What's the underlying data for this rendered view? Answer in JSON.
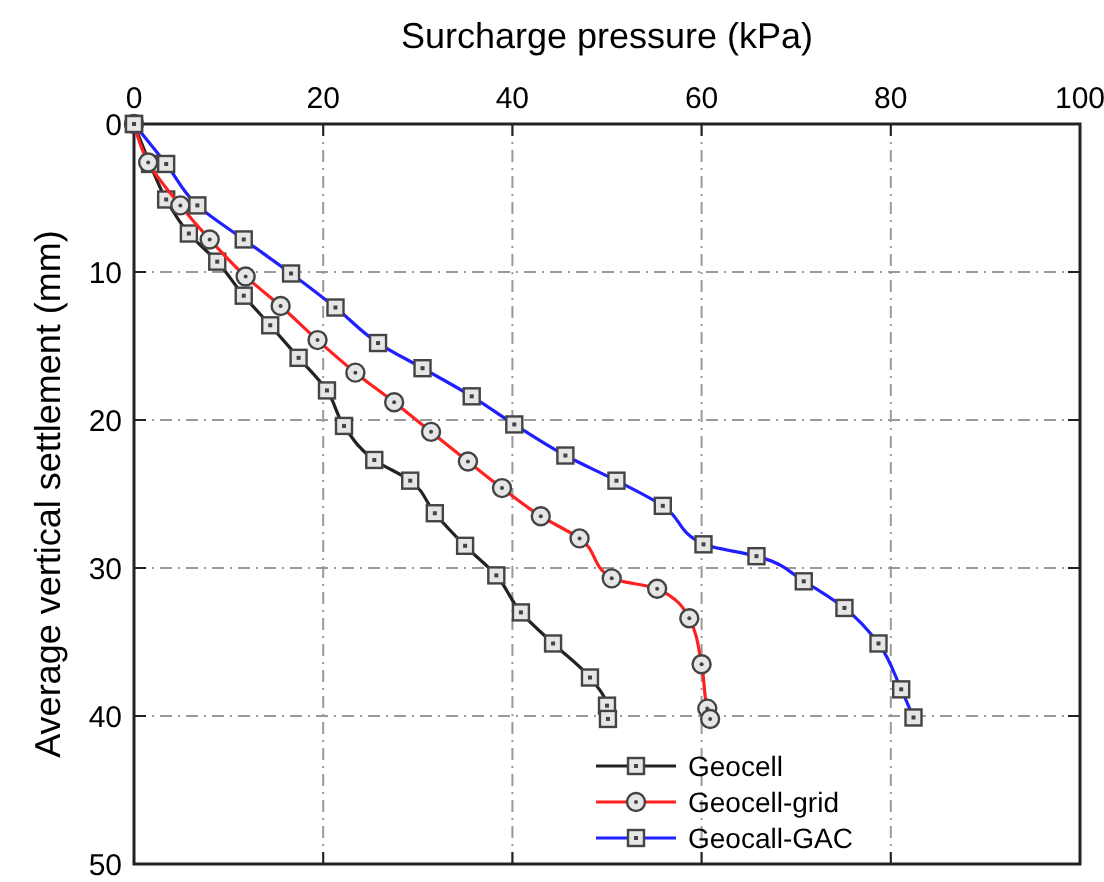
{
  "chart_data": {
    "type": "line",
    "xlabel": "Surcharge pressure (kPa)",
    "ylabel": "Average vertical settlement (mm)",
    "xlim": [
      0,
      100
    ],
    "xticks": [
      0,
      20,
      40,
      60,
      80,
      100
    ],
    "ylim": [
      50,
      0
    ],
    "yticks": [
      0,
      10,
      20,
      30,
      40,
      50
    ],
    "grid": true,
    "legend": "bottom right",
    "line_style": "solid",
    "series": [
      {
        "name": "Geocell",
        "color": "#222222",
        "marker": "square",
        "x": [
          0,
          1.7,
          3.4,
          5.8,
          8.8,
          11.6,
          14.4,
          17.4,
          20.4,
          22.2,
          25.4,
          29.2,
          31.8,
          35,
          38.3,
          40.9,
          44.3,
          48.2,
          50,
          50.1
        ],
        "values": [
          0,
          2.7,
          5.1,
          7.4,
          9.3,
          11.6,
          13.6,
          15.8,
          18,
          20.4,
          22.7,
          24.1,
          26.3,
          28.5,
          30.5,
          33,
          35.1,
          37.4,
          39.3,
          40.2
        ]
      },
      {
        "name": "Geocell-grid",
        "color": "#ff2020",
        "marker": "circle",
        "x": [
          0,
          1.5,
          4.9,
          8,
          11.8,
          15.5,
          19.4,
          23.4,
          27.5,
          31.4,
          35.3,
          38.9,
          43,
          47.1,
          50.5,
          55.3,
          58.7,
          60,
          60.6,
          60.9
        ],
        "values": [
          0,
          2.6,
          5.5,
          7.8,
          10.3,
          12.3,
          14.6,
          16.8,
          18.8,
          20.8,
          22.8,
          24.6,
          26.5,
          28,
          30.7,
          31.4,
          33.4,
          36.5,
          39.5,
          40.2
        ]
      },
      {
        "name": "Geocall-GAC",
        "color": "#1f1fff",
        "marker": "square",
        "x": [
          0,
          3.4,
          6.7,
          11.6,
          16.6,
          21.3,
          25.8,
          30.5,
          35.7,
          40.2,
          45.6,
          51,
          55.9,
          60.2,
          65.8,
          70.8,
          75.1,
          78.7,
          81.1,
          82.4
        ],
        "values": [
          0,
          2.7,
          5.5,
          7.8,
          10.1,
          12.4,
          14.8,
          16.5,
          18.4,
          20.3,
          22.4,
          24.1,
          25.8,
          28.4,
          29.2,
          30.9,
          32.7,
          35.1,
          38.2,
          40.1
        ]
      }
    ]
  }
}
